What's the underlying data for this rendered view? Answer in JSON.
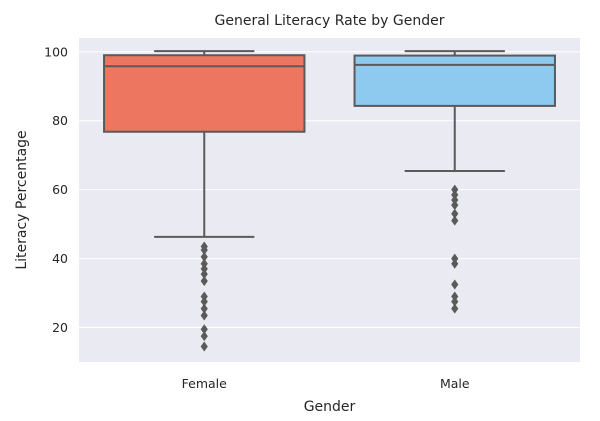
{
  "chart_data": {
    "type": "box",
    "title": "General Literacy Rate by Gender",
    "xlabel": "Gender",
    "ylabel": "Literacy Percentage",
    "ylim": [
      10,
      104
    ],
    "yticks": [
      20,
      40,
      60,
      80,
      100
    ],
    "grid": true,
    "background": "#eaeaf2",
    "categories": [
      "Female",
      "Male"
    ],
    "boxes": [
      {
        "category": "Female",
        "color": "#ec7660",
        "whisker_low": 46.3,
        "q1": 76.8,
        "median": 95.8,
        "q3": 99.0,
        "whisker_high": 100.2,
        "outliers": [
          14.5,
          17.5,
          19.5,
          23.5,
          25.5,
          27.5,
          29.0,
          33.5,
          35.5,
          37.0,
          38.5,
          40.5,
          42.5,
          43.5
        ]
      },
      {
        "category": "Male",
        "color": "#8ecaf0",
        "whisker_low": 65.4,
        "q1": 84.3,
        "median": 96.2,
        "q3": 98.9,
        "whisker_high": 100.2,
        "outliers": [
          25.5,
          27.5,
          29.0,
          32.5,
          38.5,
          40.0,
          51.0,
          53.0,
          55.5,
          57.0,
          58.5,
          60.0
        ]
      }
    ]
  }
}
